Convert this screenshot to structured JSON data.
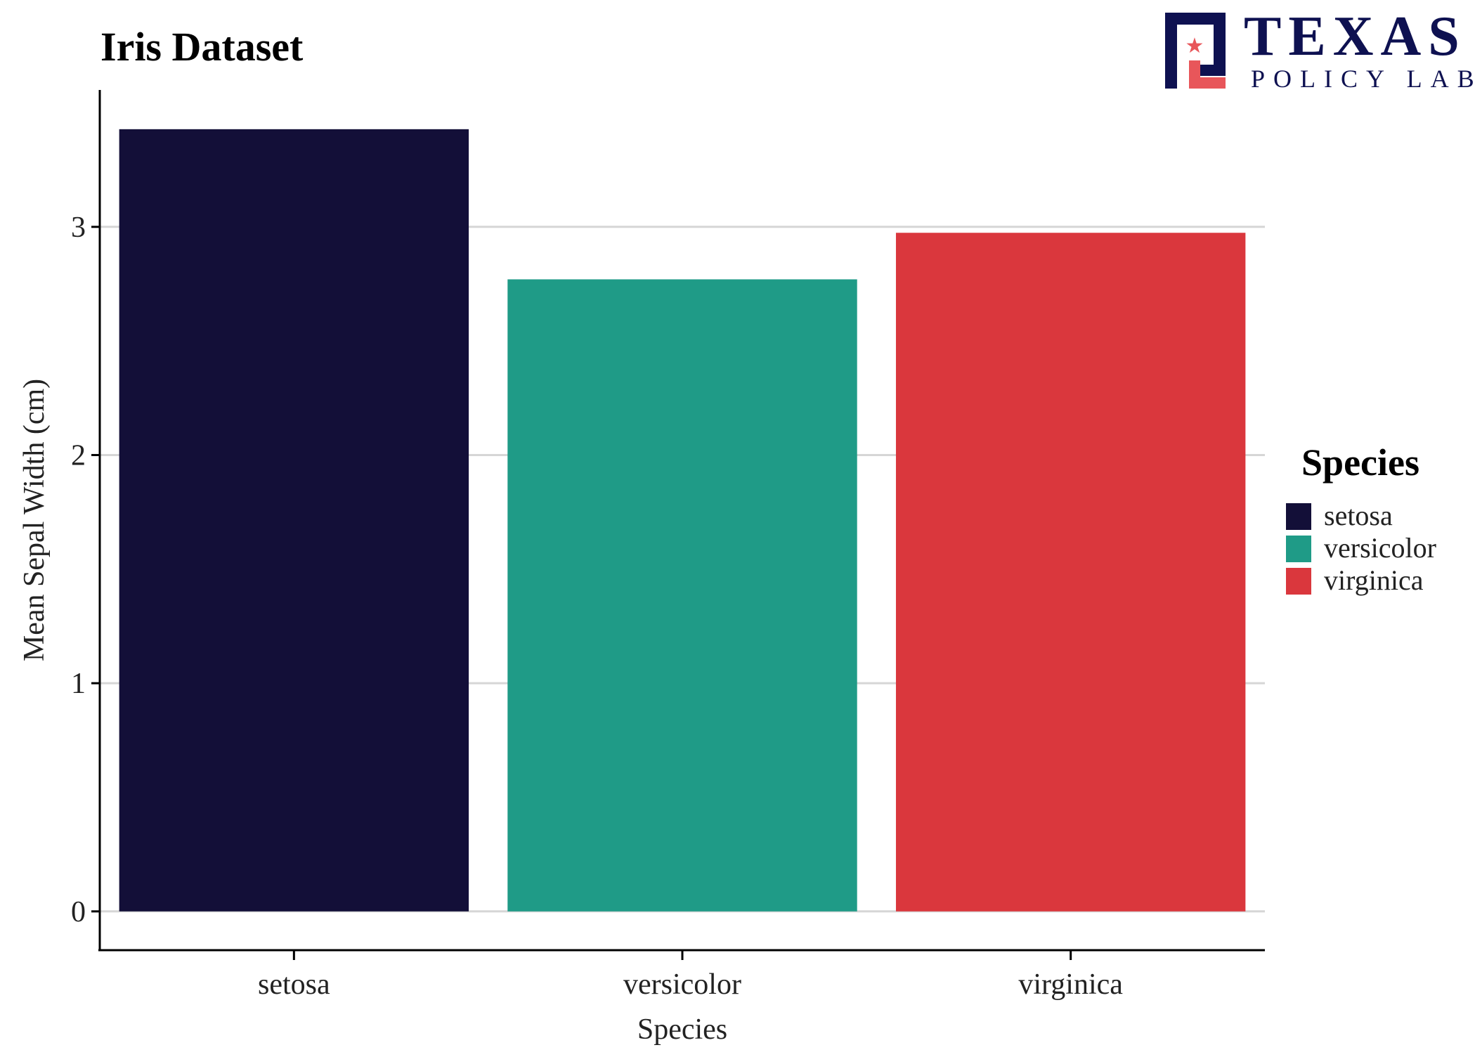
{
  "chart_data": {
    "type": "bar",
    "title": "Iris Dataset",
    "xlabel": "Species",
    "ylabel": "Mean Sepal Width (cm)",
    "categories": [
      "setosa",
      "versicolor",
      "virginica"
    ],
    "values": [
      3.428,
      2.77,
      2.974
    ],
    "ylim": [
      -0.17,
      3.6
    ],
    "yticks": [
      0,
      1,
      2,
      3
    ],
    "grid": "horizontal",
    "legend": {
      "title": "Species",
      "placement": "right",
      "items": [
        "setosa",
        "versicolor",
        "virginica"
      ]
    },
    "colors": [
      "#130f38",
      "#1f9b87",
      "#da373d"
    ]
  },
  "logo": {
    "text_main": "TEXAS",
    "text_sub": "POLICY LAB",
    "navy": "#0e1151",
    "red": "#e8565a"
  }
}
